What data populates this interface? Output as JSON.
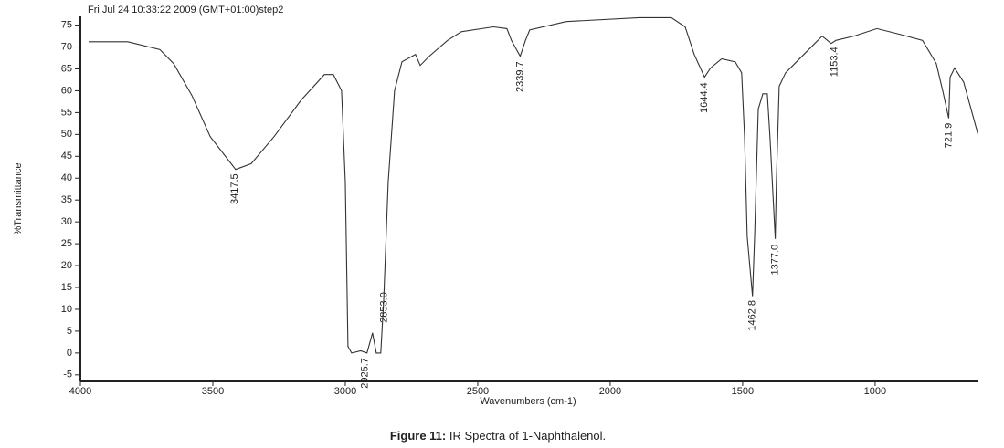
{
  "chart_data": {
    "type": "line",
    "header": "Fri Jul 24 10:33:22 2009 (GMT+01:00)step2",
    "xlabel": "Wavenumbers (cm-1)",
    "ylabel": "%Transmittance",
    "caption_bold": "Figure 11:",
    "caption": "IR Spectra of 1-Naphthalenol.",
    "xlim": [
      4000,
      610
    ],
    "ylim": [
      -6.5,
      77
    ],
    "xticks": [
      4000,
      3500,
      3000,
      2500,
      2000,
      1500,
      1000
    ],
    "yticks": [
      -5,
      0,
      5,
      10,
      15,
      20,
      25,
      30,
      35,
      40,
      45,
      50,
      55,
      60,
      65,
      70,
      75
    ],
    "color": "#333333",
    "x": [
      3969,
      3821,
      3700,
      3648,
      3579,
      3510,
      3414,
      3355,
      3269,
      3166,
      3079,
      3045,
      3014,
      3000,
      2990,
      2976,
      2942,
      2918,
      2897,
      2883,
      2866,
      2855,
      2838,
      2814,
      2786,
      2735,
      2717,
      2683,
      2614,
      2562,
      2441,
      2390,
      2373,
      2340,
      2320,
      2304,
      2166,
      1890,
      1769,
      1717,
      1683,
      1644,
      1621,
      1579,
      1528,
      1504,
      1493,
      1483,
      1463,
      1455,
      1441,
      1424,
      1407,
      1397,
      1377,
      1373,
      1362,
      1338,
      1269,
      1200,
      1166,
      1148,
      1080,
      993,
      907,
      821,
      769,
      745,
      722,
      717,
      700,
      666,
      611
    ],
    "values": [
      71.2,
      71.2,
      69.4,
      66.2,
      58.9,
      49.5,
      42,
      43.3,
      49.5,
      57.9,
      63.7,
      63.7,
      60,
      39,
      1.5,
      0,
      0.5,
      0,
      4.6,
      0,
      0,
      12,
      39,
      60,
      66.6,
      68.3,
      65.8,
      67.9,
      71.5,
      73.5,
      74.6,
      74.2,
      71.5,
      67.9,
      71.5,
      73.9,
      75.8,
      76.7,
      76.7,
      74.6,
      68.3,
      63.1,
      65.2,
      67.3,
      66.6,
      64.1,
      49.5,
      26.6,
      13,
      26.6,
      55.8,
      59.3,
      59.3,
      49.5,
      26.1,
      39,
      61,
      64.1,
      68.3,
      72.5,
      70.8,
      71.5,
      72.5,
      74.2,
      72.9,
      71.5,
      66.2,
      60,
      53.7,
      63.1,
      65.2,
      62,
      49.9
    ],
    "annotations": [
      {
        "x": 3417.5,
        "label": "3417.5"
      },
      {
        "x": 2925.7,
        "label": "2925.7"
      },
      {
        "x": 2853.0,
        "label": "2853.0"
      },
      {
        "x": 2339.7,
        "label": "2339.7"
      },
      {
        "x": 1644.4,
        "label": "1644.4"
      },
      {
        "x": 1462.8,
        "label": "1462.8"
      },
      {
        "x": 1377.0,
        "label": "1377.0"
      },
      {
        "x": 1153.4,
        "label": "1153.4"
      },
      {
        "x": 721.9,
        "label": "721.9"
      }
    ]
  }
}
